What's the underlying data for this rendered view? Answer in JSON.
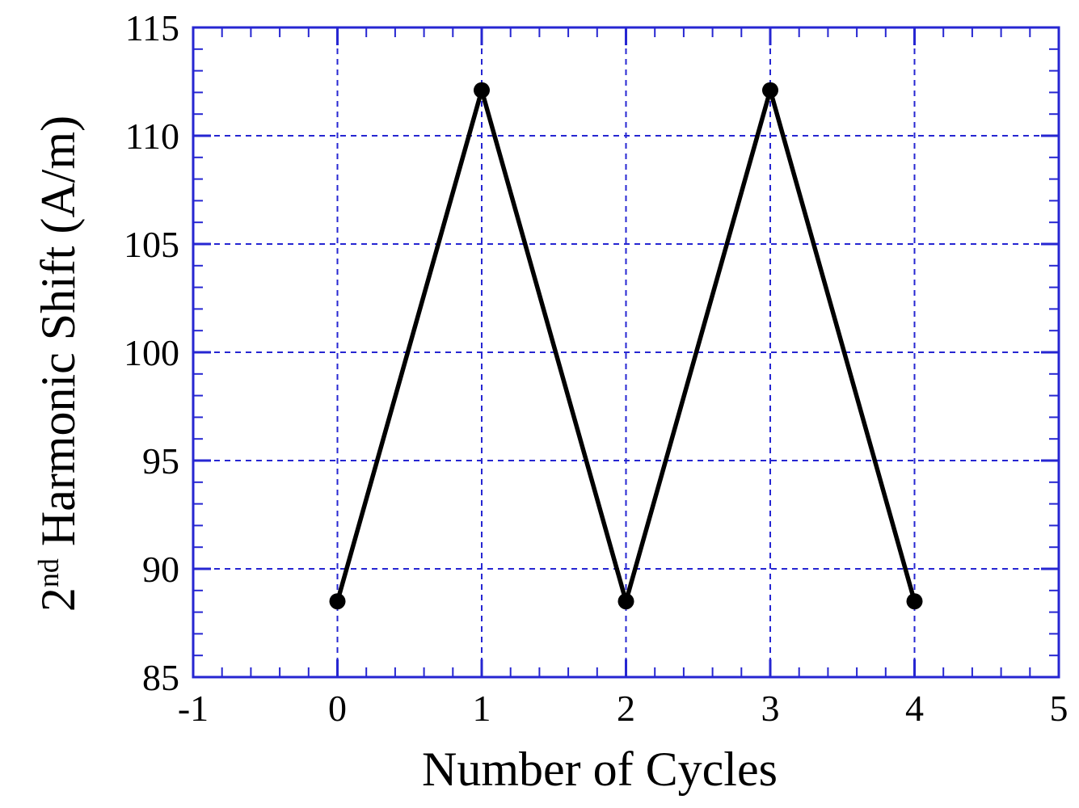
{
  "figure": {
    "background": "#ffffff"
  },
  "chart_data": {
    "type": "line",
    "title": "",
    "xlabel": "Number of Cycles",
    "ylabel": "2nd Harmonic Shift (A/m)",
    "ylabel_parts": {
      "base": "2",
      "superscript": "nd",
      "rest": " Harmonic Shift (A/m)"
    },
    "x": [
      0,
      1,
      2,
      3,
      4
    ],
    "series": [
      {
        "name": "2nd Harmonic Shift",
        "values": [
          88.5,
          112.1,
          88.5,
          112.1,
          88.5
        ]
      }
    ],
    "xlim": [
      -1,
      5
    ],
    "ylim": [
      85,
      115
    ],
    "xticks": [
      -1,
      0,
      1,
      2,
      3,
      4,
      5
    ],
    "yticks": [
      85,
      90,
      95,
      100,
      105,
      110,
      115
    ],
    "x_minor_step": 0.2,
    "y_minor_step": 1,
    "grid": {
      "show": true,
      "style": "dashed",
      "x_lines": [
        0,
        1,
        2,
        3,
        4
      ],
      "y_lines": [
        90,
        95,
        100,
        105,
        110
      ]
    },
    "legend": {
      "show": false
    },
    "style": {
      "frame_color": "#2626d2",
      "grid_color": "#2626d2",
      "tick_color": "#2626d2",
      "line_color": "#000000",
      "marker": "filled-circle",
      "marker_color": "#000000",
      "text_color": "#000000"
    }
  }
}
